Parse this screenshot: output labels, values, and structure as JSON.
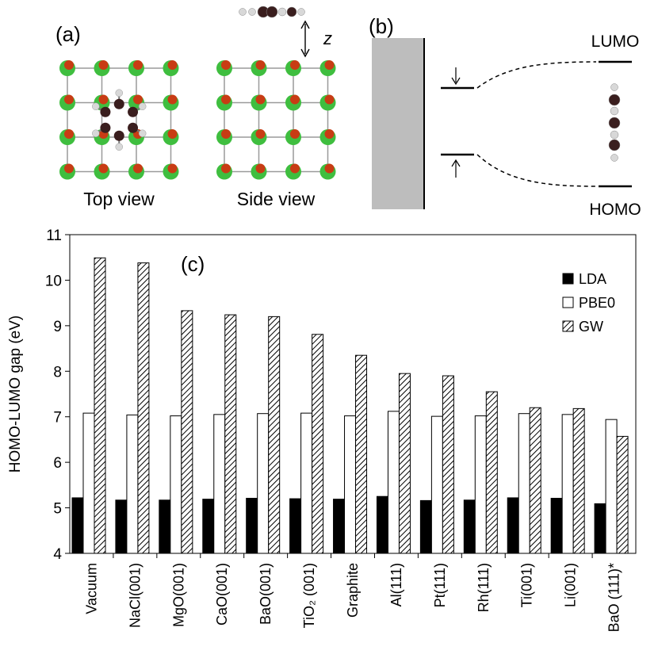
{
  "panel_a": {
    "label": "(a)",
    "top_view_caption": "Top view",
    "side_view_caption": "Side view",
    "distance_symbol": "z",
    "colors": {
      "cation": "#3fbe3f",
      "anion": "#c83c14",
      "carbon": "#3a1e1e",
      "hydrogen": "#d8d8d8",
      "bond": "#9a9a9a"
    }
  },
  "panel_b": {
    "label": "(b)",
    "lumo_label": "LUMO",
    "homo_label": "HOMO",
    "surface_color": "#bdbdbd"
  },
  "chart_data": {
    "type": "bar",
    "panel_label": "(c)",
    "ylabel": "HOMO-LUMO gap (eV)",
    "ylim": [
      4,
      11
    ],
    "yticks": [
      "4",
      "5",
      "6",
      "7",
      "8",
      "9",
      "10",
      "11"
    ],
    "categories": [
      "Vacuum",
      "NaCl(001)",
      "MgO(001)",
      "CaO(001)",
      "BaO(001)",
      "TiO₂ (001)",
      "Graphite",
      "Al(111)",
      "Pt(111)",
      "Rh(111)",
      "Ti(001)",
      "Li(001)",
      "BaO (111)*"
    ],
    "series": [
      {
        "name": "LDA",
        "style": "solid",
        "color": "#000000",
        "values": [
          5.22,
          5.17,
          5.17,
          5.19,
          5.21,
          5.2,
          5.19,
          5.25,
          5.16,
          5.17,
          5.22,
          5.21,
          5.09
        ]
      },
      {
        "name": "PBE0",
        "style": "open",
        "color": "#ffffff",
        "values": [
          7.08,
          7.04,
          7.02,
          7.05,
          7.07,
          7.08,
          7.02,
          7.12,
          7.01,
          7.02,
          7.07,
          7.05,
          6.94
        ]
      },
      {
        "name": "GW",
        "style": "hatched",
        "color": "#000000",
        "values": [
          10.49,
          10.38,
          9.33,
          9.24,
          9.2,
          8.81,
          8.35,
          7.95,
          7.9,
          7.55,
          7.2,
          7.18,
          6.57
        ]
      }
    ]
  }
}
